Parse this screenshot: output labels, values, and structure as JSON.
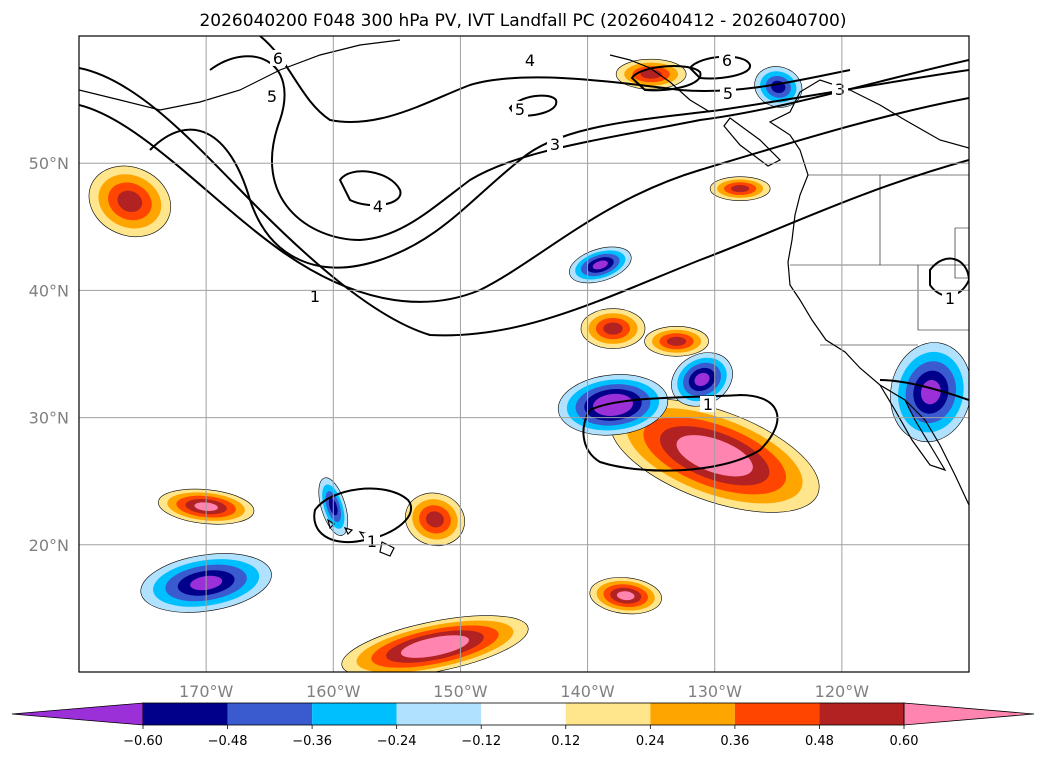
{
  "title": "2026040200 F048 300 hPa PV, IVT Landfall PC (2026040412 - 2026040700)",
  "chart_data": {
    "type": "heatmap",
    "title": "2026040200 F048 300 hPa PV, IVT Landfall PC (2026040412 - 2026040700)",
    "projection": "PlateCarree",
    "extent": {
      "lon": [
        -180,
        -110
      ],
      "lat": [
        10,
        60
      ]
    },
    "grid": true,
    "x_ticks": [
      {
        "value": -170,
        "label": "170°W"
      },
      {
        "value": -160,
        "label": "160°W"
      },
      {
        "value": -150,
        "label": "150°W"
      },
      {
        "value": -140,
        "label": "140°W"
      },
      {
        "value": -130,
        "label": "130°W"
      },
      {
        "value": -120,
        "label": "120°W"
      }
    ],
    "y_ticks": [
      {
        "value": 20,
        "label": "20°N"
      },
      {
        "value": 30,
        "label": "30°N"
      },
      {
        "value": 40,
        "label": "40°N"
      },
      {
        "value": 50,
        "label": "50°N"
      }
    ],
    "colorbar": {
      "orientation": "horizontal",
      "extend": "both",
      "levels": [
        -0.6,
        -0.48,
        -0.36,
        -0.24,
        -0.12,
        0.12,
        0.24,
        0.36,
        0.48,
        0.6
      ],
      "tick_labels": [
        "−0.60",
        "−0.48",
        "−0.36",
        "−0.24",
        "−0.12",
        "0.12",
        "0.24",
        "0.36",
        "0.48",
        "0.60"
      ],
      "colors": [
        "#9b30d9",
        "#00008b",
        "#3a5bd0",
        "#00bfff",
        "#b0e2ff",
        "#ffffff",
        "#ffe68c",
        "#ffa500",
        "#ff4500",
        "#b22222",
        "#ff85b0"
      ]
    },
    "contours": {
      "field": "300 hPa PV",
      "labels": [
        "1",
        "3",
        "4",
        "5",
        "6"
      ]
    },
    "features": [
      {
        "kind": "positive",
        "lon": -130,
        "lat": 27,
        "peak": 0.6
      },
      {
        "kind": "positive",
        "lon": -152,
        "lat": 12,
        "peak": 0.6
      },
      {
        "kind": "positive",
        "lon": -137,
        "lat": 16,
        "peak": 0.48
      },
      {
        "kind": "positive",
        "lon": -170,
        "lat": 23,
        "peak": 0.48
      },
      {
        "kind": "positive",
        "lon": -152,
        "lat": 22,
        "peak": 0.36
      },
      {
        "kind": "positive",
        "lon": -138,
        "lat": 37,
        "peak": 0.36
      },
      {
        "kind": "positive",
        "lon": -133,
        "lat": 36,
        "peak": 0.36
      },
      {
        "kind": "positive",
        "lon": -176,
        "lat": 47,
        "peak": 0.36
      },
      {
        "kind": "positive",
        "lon": -128,
        "lat": 48,
        "peak": 0.36
      },
      {
        "kind": "positive",
        "lon": -135,
        "lat": 57,
        "peak": 0.36
      },
      {
        "kind": "negative",
        "lon": -138,
        "lat": 31,
        "peak": -0.6
      },
      {
        "kind": "negative",
        "lon": -170,
        "lat": 17,
        "peak": -0.48
      },
      {
        "kind": "negative",
        "lon": -131,
        "lat": 33,
        "peak": -0.48
      },
      {
        "kind": "negative",
        "lon": -139,
        "lat": 42,
        "peak": -0.48
      },
      {
        "kind": "negative",
        "lon": -113,
        "lat": 32,
        "peak": -0.48
      },
      {
        "kind": "negative",
        "lon": -125,
        "lat": 56,
        "peak": -0.36
      },
      {
        "kind": "negative",
        "lon": -160,
        "lat": 23,
        "peak": -0.36
      }
    ]
  }
}
